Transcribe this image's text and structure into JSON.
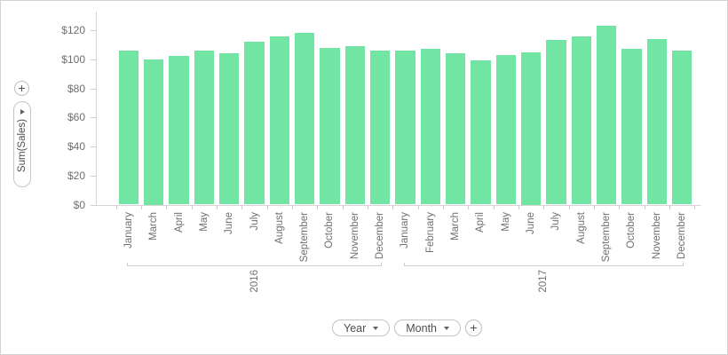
{
  "chart_data": {
    "type": "bar",
    "title": "",
    "xlabel": "",
    "ylabel": "Sum(Sales)",
    "ylim": [
      0,
      120
    ],
    "grid": false,
    "legend": "none",
    "bar_color": "#72e5a4",
    "y_tick_labels": [
      "$0",
      "$20",
      "$40",
      "$60",
      "$80",
      "$100",
      "$120"
    ],
    "y_tick_values": [
      0,
      20,
      40,
      60,
      80,
      100,
      120
    ],
    "groups": [
      {
        "year": "2016",
        "categories": [
          "January",
          "March",
          "April",
          "May",
          "June",
          "July",
          "August",
          "September",
          "October",
          "November",
          "December"
        ],
        "values": [
          106,
          100,
          102,
          106,
          104,
          112,
          116,
          118,
          108,
          109,
          106
        ]
      },
      {
        "year": "2017",
        "categories": [
          "January",
          "February",
          "March",
          "April",
          "May",
          "June",
          "July",
          "August",
          "September",
          "October",
          "November",
          "December"
        ],
        "values": [
          106,
          107,
          104,
          99,
          103,
          105,
          113,
          116,
          123,
          107,
          114,
          106
        ]
      }
    ]
  },
  "left_panel": {
    "add_button_label": "+",
    "field_button_label": "Sum(Sales)"
  },
  "bottom_panel": {
    "year_button_label": "Year",
    "month_button_label": "Month",
    "add_button_label": "+"
  }
}
